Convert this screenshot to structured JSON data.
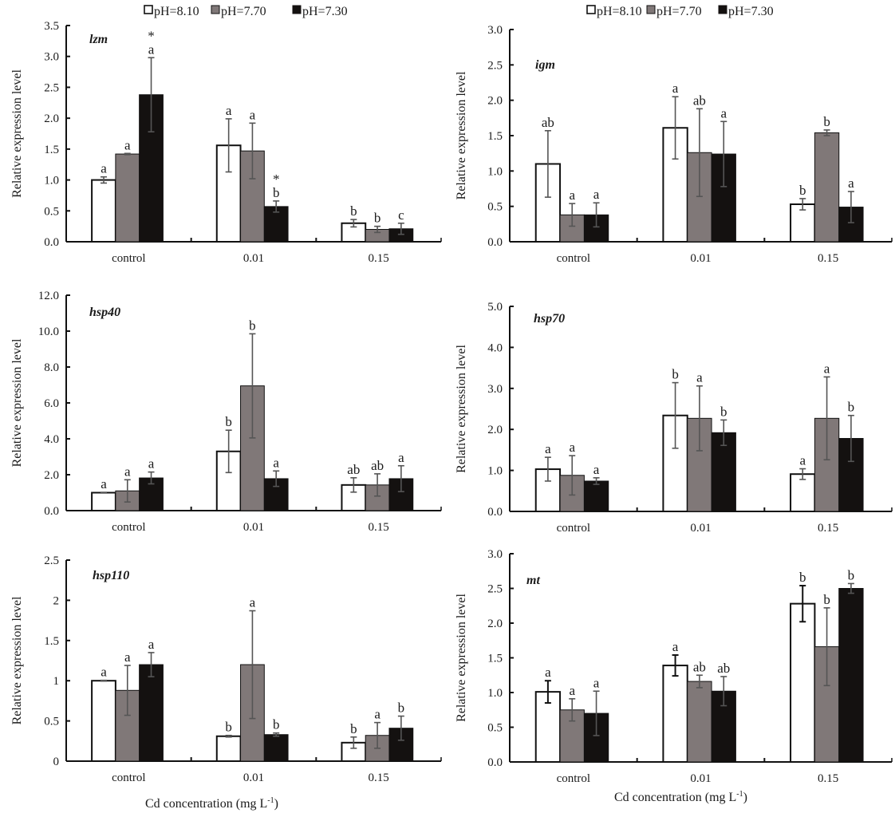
{
  "legend": [
    {
      "label": "pH=8.10",
      "color": "#ffffff"
    },
    {
      "label": "pH=7.70",
      "color": "#807878"
    },
    {
      "label": "pH=7.30",
      "color": "#141110"
    }
  ],
  "x_title": "Cd    concentration (mg L",
  "x_title_sup": "-1",
  "x_title_end": ")",
  "chart_data": [
    {
      "type": "bar",
      "title": "lzm",
      "ylabel": "Relative expression level",
      "xlabel": "",
      "categories": [
        "control",
        "0.01",
        "0.15"
      ],
      "ylim": [
        0,
        3.5
      ],
      "yticks": [
        "0.0",
        "0.5",
        "1.0",
        "1.5",
        "2.0",
        "2.5",
        "3.0",
        "3.5"
      ],
      "ytick_values": [
        0,
        0.5,
        1.0,
        1.5,
        2.0,
        2.5,
        3.0,
        3.5
      ],
      "series": [
        {
          "name": "pH=8.10",
          "values": [
            1.0,
            1.56,
            0.3
          ],
          "errors": [
            0.05,
            0.43,
            0.06
          ],
          "labels": [
            "a",
            "a",
            "b"
          ]
        },
        {
          "name": "pH=7.70",
          "values": [
            1.42,
            1.47,
            0.2
          ],
          "errors": [
            0.01,
            0.45,
            0.05
          ],
          "labels": [
            "a",
            "a",
            "b"
          ]
        },
        {
          "name": "pH=7.30",
          "values": [
            2.38,
            0.57,
            0.21
          ],
          "errors": [
            0.6,
            0.09,
            0.09
          ],
          "labels": [
            "*\na",
            "*\nb",
            "c"
          ]
        }
      ]
    },
    {
      "type": "bar",
      "title": "igm",
      "ylabel": "Relative expression level",
      "xlabel": "",
      "categories": [
        "control",
        "0.01",
        "0.15"
      ],
      "ylim": [
        0,
        3.0
      ],
      "yticks": [
        "0.0",
        "0.5",
        "1.0",
        "1.5",
        "2.0",
        "2.5",
        "3.0"
      ],
      "ytick_values": [
        0,
        0.5,
        1.0,
        1.5,
        2.0,
        2.5,
        3.0
      ],
      "series": [
        {
          "name": "pH=8.10",
          "values": [
            1.1,
            1.61,
            0.53
          ],
          "errors": [
            0.47,
            0.44,
            0.08
          ],
          "labels": [
            "ab",
            "a",
            "b"
          ]
        },
        {
          "name": "pH=7.70",
          "values": [
            0.38,
            1.26,
            1.54
          ],
          "errors": [
            0.16,
            0.62,
            0.04
          ],
          "labels": [
            "a",
            "ab",
            "b"
          ]
        },
        {
          "name": "pH=7.30",
          "values": [
            0.38,
            1.24,
            0.49
          ],
          "errors": [
            0.17,
            0.46,
            0.22
          ],
          "labels": [
            "a",
            "a",
            "a"
          ]
        }
      ]
    },
    {
      "type": "bar",
      "title": "hsp40",
      "ylabel": "Relative expression level",
      "xlabel": "",
      "categories": [
        "control",
        "0.01",
        "0.15"
      ],
      "ylim": [
        0,
        12.0
      ],
      "yticks": [
        "0.0",
        "2.0",
        "4.0",
        "6.0",
        "8.0",
        "10.0",
        "12.0"
      ],
      "ytick_values": [
        0,
        2,
        4,
        6,
        8,
        10,
        12
      ],
      "series": [
        {
          "name": "pH=8.10",
          "values": [
            1.0,
            3.3,
            1.43
          ],
          "errors": [
            0.02,
            1.18,
            0.4
          ],
          "labels": [
            "a",
            "b",
            "ab"
          ]
        },
        {
          "name": "pH=7.70",
          "values": [
            1.1,
            6.95,
            1.43
          ],
          "errors": [
            0.62,
            2.9,
            0.62
          ],
          "labels": [
            "a",
            "b",
            "ab"
          ]
        },
        {
          "name": "pH=7.30",
          "values": [
            1.82,
            1.78,
            1.78
          ],
          "errors": [
            0.33,
            0.43,
            0.72
          ],
          "labels": [
            "a",
            "a",
            "a"
          ]
        }
      ]
    },
    {
      "type": "bar",
      "title": "hsp70",
      "ylabel": "Relative expression level",
      "xlabel": "",
      "categories": [
        "control",
        "0.01",
        "0.15"
      ],
      "ylim": [
        0,
        5.0
      ],
      "yticks": [
        "0.0",
        "1.0",
        "2.0",
        "3.0",
        "4.0",
        "5.0"
      ],
      "ytick_values": [
        0,
        1,
        2,
        3,
        4,
        5
      ],
      "series": [
        {
          "name": "pH=8.10",
          "values": [
            1.03,
            2.34,
            0.91
          ],
          "errors": [
            0.29,
            0.8,
            0.13
          ],
          "labels": [
            "a",
            "b",
            "a"
          ]
        },
        {
          "name": "pH=7.70",
          "values": [
            0.88,
            2.27,
            2.27
          ],
          "errors": [
            0.48,
            0.79,
            1.01
          ],
          "labels": [
            "a",
            "a",
            "a"
          ]
        },
        {
          "name": "pH=7.30",
          "values": [
            0.74,
            1.92,
            1.78
          ],
          "errors": [
            0.08,
            0.31,
            0.56
          ],
          "labels": [
            "a",
            "b",
            "b"
          ]
        }
      ]
    },
    {
      "type": "bar",
      "title": "hsp110",
      "ylabel": "Relative expression level",
      "xlabel": "Cd concentration (mg L-1)",
      "categories": [
        "control",
        "0.01",
        "0.15"
      ],
      "ylim": [
        0,
        2.5
      ],
      "yticks": [
        "0",
        "0.5",
        "1",
        "1.5",
        "2",
        "2.5"
      ],
      "ytick_values": [
        0,
        0.5,
        1,
        1.5,
        2,
        2.5
      ],
      "series": [
        {
          "name": "pH=8.10",
          "values": [
            1.0,
            0.31,
            0.23
          ],
          "errors": [
            0.005,
            0.01,
            0.07
          ],
          "labels": [
            "a",
            "b",
            "b"
          ]
        },
        {
          "name": "pH=7.70",
          "values": [
            0.88,
            1.2,
            0.32
          ],
          "errors": [
            0.31,
            0.67,
            0.16
          ],
          "labels": [
            "a",
            "a",
            "a"
          ]
        },
        {
          "name": "pH=7.30",
          "values": [
            1.2,
            0.33,
            0.41
          ],
          "errors": [
            0.15,
            0.02,
            0.15
          ],
          "labels": [
            "a",
            "b",
            "b"
          ]
        }
      ]
    },
    {
      "type": "bar",
      "title": "mt",
      "ylabel": "Relative expression level",
      "xlabel": "Cd concentration (mg L-1)",
      "categories": [
        "control",
        "0.01",
        "0.15"
      ],
      "ylim": [
        0,
        3.0
      ],
      "yticks": [
        "0.0",
        "0.5",
        "1.0",
        "1.5",
        "2.0",
        "2.5",
        "3.0"
      ],
      "ytick_values": [
        0,
        0.5,
        1.0,
        1.5,
        2.0,
        2.5,
        3.0
      ],
      "series": [
        {
          "name": "pH=8.10",
          "values": [
            1.01,
            1.39,
            2.28
          ],
          "errors": [
            0.16,
            0.15,
            0.26
          ],
          "labels": [
            "a",
            "a",
            "b"
          ]
        },
        {
          "name": "pH=7.70",
          "values": [
            0.75,
            1.16,
            1.66
          ],
          "errors": [
            0.16,
            0.09,
            0.56
          ],
          "labels": [
            "a",
            "ab",
            "b"
          ]
        },
        {
          "name": "pH=7.30",
          "values": [
            0.7,
            1.02,
            2.5
          ],
          "errors": [
            0.32,
            0.21,
            0.07
          ],
          "labels": [
            "a",
            "ab",
            "b"
          ]
        }
      ]
    }
  ]
}
